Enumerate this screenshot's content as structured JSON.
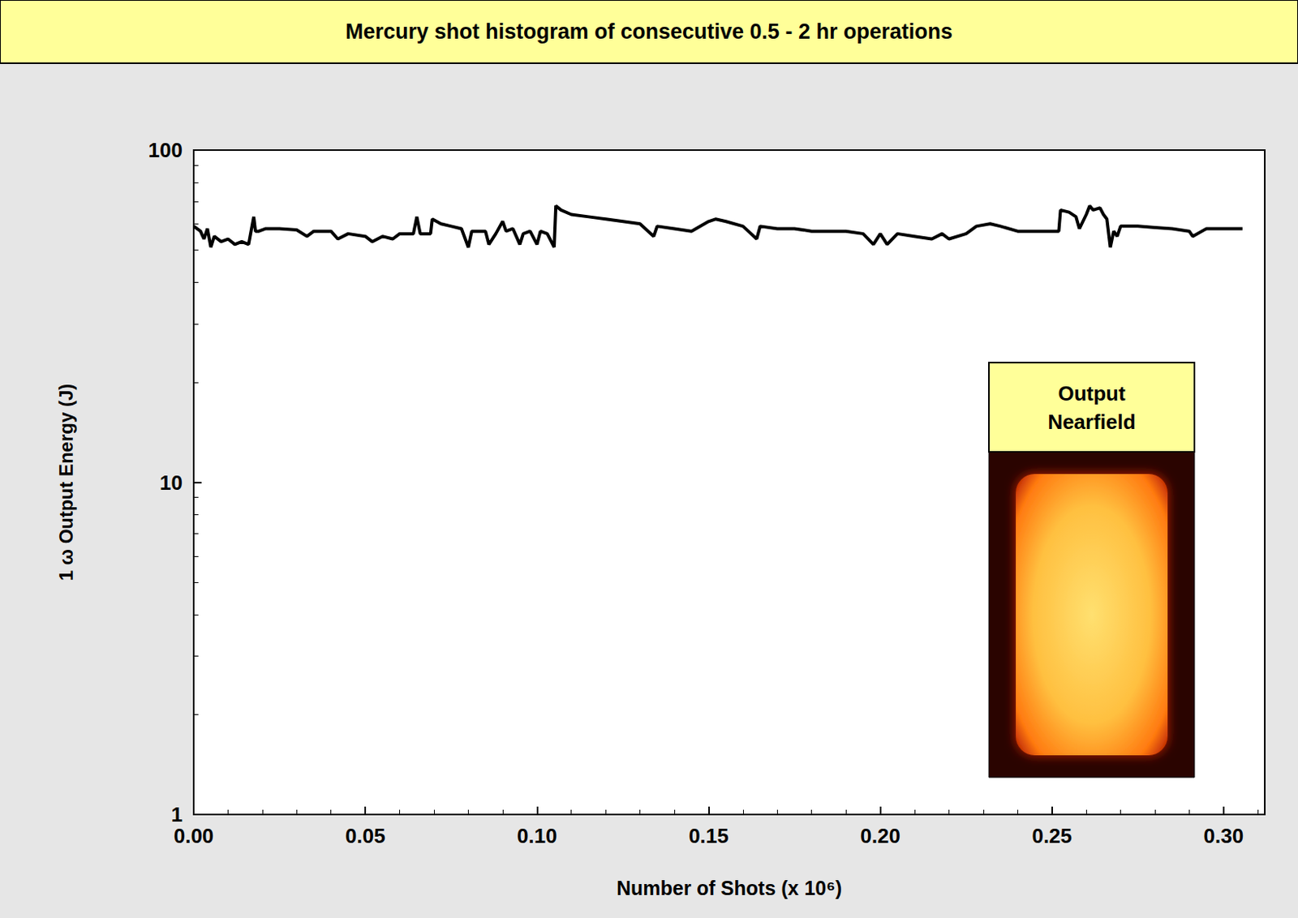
{
  "chart_data": {
    "type": "line",
    "title": "Mercury shot histogram of consecutive 0.5 - 2 hr operations",
    "x_label": "Number of Shots (x 10⁶)",
    "y_label": "1 ω Output Energy (J)",
    "annotations": [
      "Output Nearfield"
    ],
    "log": "y",
    "grid": false,
    "color": "#000000",
    "xlim": [
      0,
      0.312
    ],
    "ylim": [
      1,
      100
    ],
    "xticks": [
      {
        "value": 0,
        "label": "0.00"
      },
      {
        "value": 0.05,
        "label": "0.05"
      },
      {
        "value": 0.1,
        "label": "0.10"
      },
      {
        "value": 0.15,
        "label": "0.15"
      },
      {
        "value": 0.2,
        "label": "0.20"
      },
      {
        "value": 0.25,
        "label": "0.25"
      },
      {
        "value": 0.3,
        "label": "0.30"
      }
    ],
    "yticks": [
      1,
      10,
      100
    ],
    "x": [
      0,
      0.002,
      0.003,
      0.004,
      0.005,
      0.006,
      0.008,
      0.01,
      0.012,
      0.014,
      0.016,
      0.0175,
      0.018,
      0.019,
      0.021,
      0.025,
      0.03,
      0.033,
      0.035,
      0.04,
      0.042,
      0.045,
      0.05,
      0.052,
      0.055,
      0.058,
      0.06,
      0.064,
      0.065,
      0.066,
      0.069,
      0.0695,
      0.072,
      0.075,
      0.078,
      0.08,
      0.081,
      0.085,
      0.086,
      0.088,
      0.09,
      0.091,
      0.093,
      0.095,
      0.096,
      0.098,
      0.1,
      0.101,
      0.103,
      0.105,
      0.1055,
      0.107,
      0.11,
      0.115,
      0.12,
      0.125,
      0.13,
      0.134,
      0.135,
      0.14,
      0.145,
      0.15,
      0.152,
      0.155,
      0.16,
      0.164,
      0.165,
      0.17,
      0.175,
      0.18,
      0.185,
      0.19,
      0.195,
      0.198,
      0.2,
      0.202,
      0.205,
      0.21,
      0.215,
      0.218,
      0.22,
      0.225,
      0.228,
      0.232,
      0.235,
      0.24,
      0.245,
      0.25,
      0.252,
      0.2525,
      0.255,
      0.257,
      0.258,
      0.26,
      0.261,
      0.262,
      0.264,
      0.265,
      0.266,
      0.267,
      0.268,
      0.269,
      0.27,
      0.275,
      0.28,
      0.285,
      0.29,
      0.291,
      0.295,
      0.3,
      0.3055
    ],
    "values": [
      59,
      57,
      54,
      58,
      51,
      55,
      53,
      54,
      52,
      53,
      52,
      63,
      57,
      57,
      58,
      58,
      57.5,
      55,
      57,
      57,
      54,
      56,
      55,
      53,
      55,
      54,
      56,
      56,
      63,
      56,
      56,
      62,
      60,
      59,
      58,
      51,
      57,
      57,
      52,
      56,
      61,
      57,
      58,
      52,
      56,
      57,
      52,
      57,
      56,
      51,
      68,
      66,
      64,
      63,
      62,
      61,
      60,
      55,
      59,
      58,
      57,
      61,
      62,
      61,
      59,
      54,
      59,
      58,
      58,
      57,
      57,
      57,
      56,
      52,
      56,
      52,
      56,
      55,
      54,
      56,
      54,
      56,
      59,
      60,
      59,
      57,
      57,
      57,
      57,
      66,
      65,
      63,
      58,
      64,
      68,
      66,
      67,
      64,
      62,
      51,
      57,
      55,
      59,
      59,
      58.5,
      58,
      57,
      55,
      58,
      58,
      58
    ]
  }
}
